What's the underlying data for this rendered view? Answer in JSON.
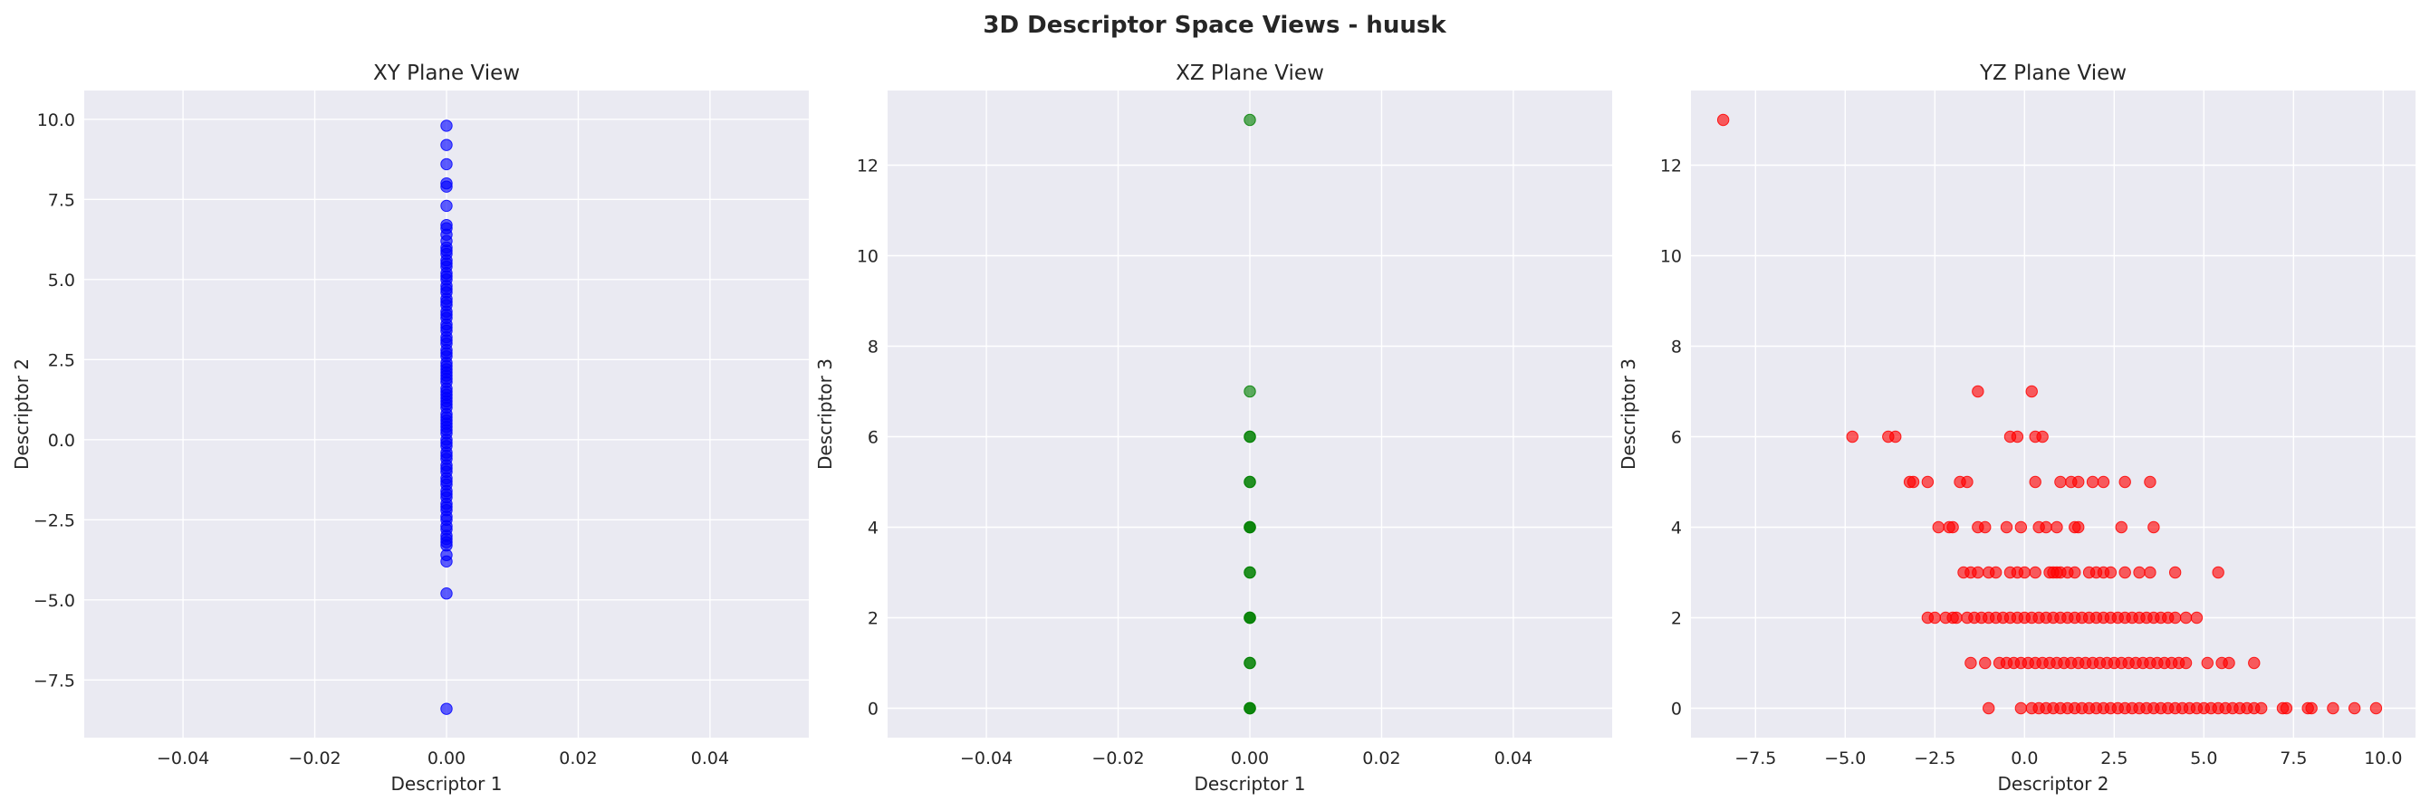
{
  "figure_title": "3D Descriptor Space Views - huusk",
  "chart_data": [
    {
      "type": "scatter",
      "title": "XY Plane View",
      "xlabel": "Descriptor 1",
      "ylabel": "Descriptor 2",
      "xlim": [
        -0.055,
        0.055
      ],
      "ylim": [
        -9.3,
        10.9
      ],
      "xticks": [
        -0.04,
        -0.02,
        0.0,
        0.02,
        0.04
      ],
      "xtick_labels": [
        "−0.04",
        "−0.02",
        "0.00",
        "0.02",
        "0.04"
      ],
      "yticks": [
        -7.5,
        -5.0,
        -2.5,
        0.0,
        2.5,
        5.0,
        7.5,
        10.0
      ],
      "ytick_labels": [
        "−7.5",
        "−5.0",
        "−2.5",
        "0.0",
        "2.5",
        "5.0",
        "7.5",
        "10.0"
      ],
      "grid": true,
      "color": "#0000ff",
      "series": [
        {
          "x": [
            0,
            0,
            0,
            0,
            0,
            0,
            0,
            0,
            0,
            0,
            0,
            0,
            0,
            0,
            0,
            0,
            0,
            0,
            0,
            0,
            0,
            0,
            0,
            0,
            0,
            0,
            0,
            0,
            0,
            0,
            0,
            0,
            0,
            0,
            0,
            0,
            0,
            0,
            0,
            0,
            0,
            0,
            0,
            0,
            0,
            0,
            0,
            0,
            0,
            0,
            0,
            0,
            0,
            0,
            0,
            0,
            0,
            0,
            0,
            0,
            0,
            0,
            0,
            0,
            0,
            0,
            0,
            0,
            0,
            0,
            0,
            0,
            0,
            0,
            0,
            0,
            0,
            0,
            0,
            0,
            0,
            0,
            0,
            0,
            0,
            0,
            0,
            0
          ],
          "y": [
            9.8,
            9.2,
            8.6,
            8.0,
            7.9,
            7.3,
            6.7,
            6.6,
            6.4,
            6.2,
            6.0,
            5.8,
            5.6,
            5.4,
            5.2,
            5.0,
            4.8,
            4.6,
            4.4,
            4.2,
            4.0,
            3.8,
            3.6,
            3.4,
            3.2,
            3.0,
            2.8,
            2.6,
            2.4,
            2.2,
            2.0,
            1.8,
            1.6,
            1.4,
            1.2,
            1.0,
            0.8,
            0.6,
            0.4,
            0.2,
            0.0,
            -0.2,
            -0.4,
            -0.6,
            -0.8,
            -1.0,
            -1.2,
            -1.4,
            -1.6,
            -1.8,
            -2.0,
            -2.2,
            -2.4,
            -2.7,
            -3.1,
            -3.2,
            -3.6,
            -3.8,
            -4.8,
            -8.4,
            5.9,
            5.5,
            5.1,
            4.7,
            4.3,
            3.9,
            3.5,
            3.1,
            2.7,
            2.3,
            1.9,
            1.5,
            1.1,
            0.7,
            0.3,
            -0.1,
            -0.5,
            -0.9,
            -1.3,
            -1.7,
            -2.1,
            -2.5,
            -2.8,
            -3.0,
            -3.3,
            0.5,
            1.3,
            2.1
          ]
        }
      ]
    },
    {
      "type": "scatter",
      "title": "XZ Plane View",
      "xlabel": "Descriptor 1",
      "ylabel": "Descriptor 3",
      "xlim": [
        -0.055,
        0.055
      ],
      "ylim": [
        -0.65,
        13.65
      ],
      "xticks": [
        -0.04,
        -0.02,
        0.0,
        0.02,
        0.04
      ],
      "xtick_labels": [
        "−0.04",
        "−0.02",
        "0.00",
        "0.02",
        "0.04"
      ],
      "yticks": [
        0,
        2,
        4,
        6,
        8,
        10,
        12
      ],
      "ytick_labels": [
        "0",
        "2",
        "4",
        "6",
        "8",
        "10",
        "12"
      ],
      "grid": true,
      "color": "#008000",
      "series": [
        {
          "x": [
            0,
            0,
            0,
            0,
            0,
            0,
            0,
            0,
            0,
            0,
            0,
            0,
            0,
            0,
            0,
            0,
            0,
            0,
            0
          ],
          "y": [
            13,
            7,
            6,
            6,
            5,
            5,
            4,
            4,
            3,
            3,
            2,
            2,
            1,
            1,
            0,
            0,
            0,
            2,
            4
          ]
        }
      ]
    },
    {
      "type": "scatter",
      "title": "YZ Plane View",
      "xlabel": "Descriptor 2",
      "ylabel": "Descriptor 3",
      "xlim": [
        -9.3,
        10.9
      ],
      "ylim": [
        -0.65,
        13.65
      ],
      "xticks": [
        -7.5,
        -5.0,
        -2.5,
        0.0,
        2.5,
        5.0,
        7.5,
        10.0
      ],
      "xtick_labels": [
        "−7.5",
        "−5.0",
        "−2.5",
        "0.0",
        "2.5",
        "5.0",
        "7.5",
        "10.0"
      ],
      "yticks": [
        0,
        2,
        4,
        6,
        8,
        10,
        12
      ],
      "ytick_labels": [
        "0",
        "2",
        "4",
        "6",
        "8",
        "10",
        "12"
      ],
      "grid": true,
      "color": "#ff0000",
      "series": [
        {
          "x": [
            -8.4,
            -4.8,
            -3.8,
            -3.6,
            -1.3,
            0.2,
            -0.4,
            -0.2,
            0.3,
            0.5,
            -3.2,
            -3.1,
            -2.7,
            -1.8,
            -1.6,
            0.3,
            1.0,
            1.3,
            1.5,
            1.9,
            2.2,
            2.8,
            3.5,
            -2.4,
            -2.1,
            -2.0,
            -1.3,
            -1.1,
            -0.5,
            -0.1,
            0.4,
            0.6,
            0.9,
            1.4,
            1.5,
            2.7,
            3.6,
            -1.7,
            -1.5,
            -1.3,
            -1.0,
            -0.8,
            -0.4,
            -0.2,
            0.0,
            0.3,
            0.7,
            0.8,
            0.9,
            1.0,
            1.2,
            1.4,
            1.8,
            2.0,
            2.2,
            2.4,
            2.8,
            3.2,
            3.5,
            4.2,
            5.4,
            -2.7,
            -2.5,
            -2.2,
            -2.0,
            -1.9,
            -1.6,
            -1.4,
            -1.2,
            -1.0,
            -0.8,
            -0.6,
            -0.4,
            -0.2,
            0.0,
            0.2,
            0.4,
            0.6,
            0.8,
            1.0,
            1.2,
            1.4,
            1.6,
            1.8,
            2.0,
            2.2,
            2.4,
            2.6,
            2.8,
            3.0,
            3.2,
            3.4,
            3.6,
            3.8,
            4.0,
            4.2,
            4.5,
            4.8,
            -1.5,
            -1.1,
            -0.7,
            -0.5,
            -0.3,
            -0.1,
            0.1,
            0.3,
            0.5,
            0.7,
            0.9,
            1.1,
            1.3,
            1.5,
            1.7,
            1.9,
            2.1,
            2.3,
            2.5,
            2.7,
            2.9,
            3.1,
            3.3,
            3.5,
            3.7,
            3.9,
            4.1,
            4.3,
            4.5,
            5.1,
            5.5,
            5.7,
            6.4,
            -1.0,
            -0.1,
            0.2,
            0.4,
            0.6,
            0.8,
            1.0,
            1.2,
            1.4,
            1.6,
            1.8,
            2.0,
            2.2,
            2.4,
            2.6,
            2.8,
            3.0,
            3.2,
            3.4,
            3.6,
            3.8,
            4.0,
            4.2,
            4.4,
            4.6,
            4.8,
            5.0,
            5.2,
            5.4,
            5.6,
            5.8,
            6.0,
            6.2,
            6.4,
            6.6,
            7.2,
            7.3,
            7.9,
            8.0,
            8.6,
            9.2,
            9.8
          ],
          "y": [
            13,
            6,
            6,
            6,
            7,
            7,
            6,
            6,
            6,
            6,
            5,
            5,
            5,
            5,
            5,
            5,
            5,
            5,
            5,
            5,
            5,
            5,
            5,
            4,
            4,
            4,
            4,
            4,
            4,
            4,
            4,
            4,
            4,
            4,
            4,
            4,
            4,
            3,
            3,
            3,
            3,
            3,
            3,
            3,
            3,
            3,
            3,
            3,
            3,
            3,
            3,
            3,
            3,
            3,
            3,
            3,
            3,
            3,
            3,
            3,
            3,
            2,
            2,
            2,
            2,
            2,
            2,
            2,
            2,
            2,
            2,
            2,
            2,
            2,
            2,
            2,
            2,
            2,
            2,
            2,
            2,
            2,
            2,
            2,
            2,
            2,
            2,
            2,
            2,
            2,
            2,
            2,
            2,
            2,
            2,
            2,
            2,
            2,
            1,
            1,
            1,
            1,
            1,
            1,
            1,
            1,
            1,
            1,
            1,
            1,
            1,
            1,
            1,
            1,
            1,
            1,
            1,
            1,
            1,
            1,
            1,
            1,
            1,
            1,
            1,
            1,
            1,
            1,
            1,
            1,
            1,
            0,
            0,
            0,
            0,
            0,
            0,
            0,
            0,
            0,
            0,
            0,
            0,
            0,
            0,
            0,
            0,
            0,
            0,
            0,
            0,
            0,
            0,
            0,
            0,
            0,
            0,
            0,
            0,
            0,
            0,
            0,
            0,
            0,
            0,
            0,
            0,
            0,
            0,
            0,
            0,
            0,
            0
          ]
        }
      ]
    }
  ]
}
